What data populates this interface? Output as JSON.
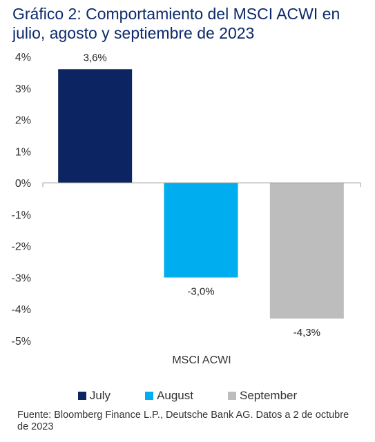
{
  "chart_data": {
    "type": "bar",
    "title": "Gráfico 2: Comportamiento del MSCI ACWI en julio, agosto y septiembre de 2023",
    "categories": [
      "MSCI ACWI"
    ],
    "series": [
      {
        "name": "July",
        "value": 3.6,
        "label": "3,6%",
        "color": "#0c2461"
      },
      {
        "name": "August",
        "value": -3.0,
        "label": "-3,0%",
        "color": "#00aeef"
      },
      {
        "name": "September",
        "value": -4.3,
        "label": "-4,3%",
        "color": "#bdbdbd"
      }
    ],
    "yticks": [
      {
        "value": 4,
        "label": "4%"
      },
      {
        "value": 3,
        "label": "3%"
      },
      {
        "value": 2,
        "label": "2%"
      },
      {
        "value": 1,
        "label": "1%"
      },
      {
        "value": 0,
        "label": "0%"
      },
      {
        "value": -1,
        "label": "-1%"
      },
      {
        "value": -2,
        "label": "-2%"
      },
      {
        "value": -3,
        "label": "-3%"
      },
      {
        "value": -4,
        "label": "-4%"
      },
      {
        "value": -5,
        "label": "-5%"
      }
    ],
    "ylim": [
      -5,
      4
    ],
    "xlabel": "",
    "ylabel": "",
    "grid": false,
    "legend_position": "bottom"
  },
  "source": "Fuente: Bloomberg Finance L.P., Deutsche Bank AG. Datos a 2 de octubre de 2023"
}
